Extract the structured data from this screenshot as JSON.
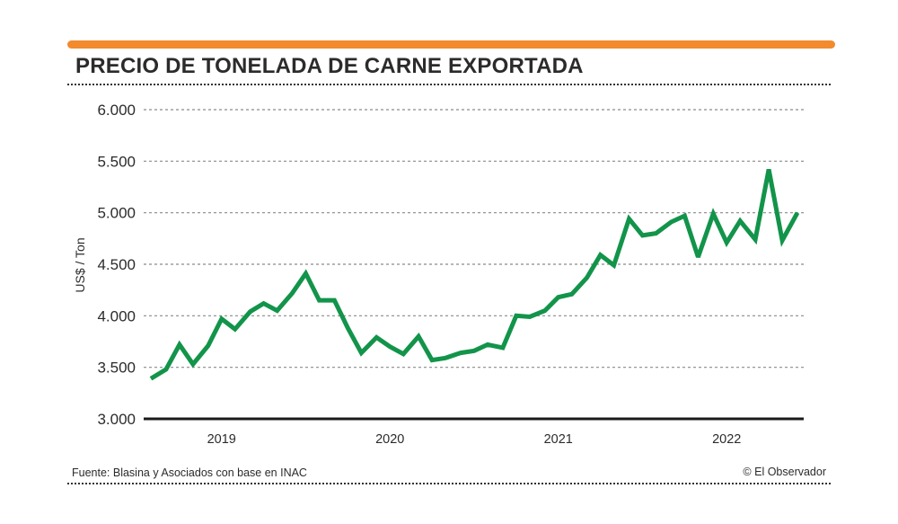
{
  "title": "PRECIO DE TONELADA DE CARNE EXPORTADA",
  "footer": {
    "source": "Fuente: Blasina y Asociados con base en INAC",
    "credit": "© El Observador"
  },
  "colors": {
    "accent_bar": "#f28a2e",
    "line": "#12944a",
    "text": "#2b2b2b",
    "grid": "#8a8a8a"
  },
  "chart_data": {
    "type": "line",
    "title": "PRECIO DE TONELADA DE CARNE EXPORTADA",
    "xlabel": "",
    "ylabel": "US$ / Ton",
    "ylim": [
      3000,
      6000
    ],
    "xlim": [
      2018.58,
      2022.42
    ],
    "yticks": [
      3000,
      3500,
      4000,
      4500,
      5000,
      5500,
      6000
    ],
    "ytick_labels": [
      "3.000",
      "3.500",
      "4.000",
      "4.500",
      "5.000",
      "5.500",
      "6.000"
    ],
    "xticks": [
      {
        "label": "2019",
        "value": 2019.0
      },
      {
        "label": "2020",
        "value": 2020.0
      },
      {
        "label": "2021",
        "value": 2021.0
      },
      {
        "label": "2022",
        "value": 2022.0
      }
    ],
    "grid": true,
    "series": [
      {
        "name": "US$ / Ton",
        "x": [
          2018.58,
          2018.67,
          2018.75,
          2018.83,
          2018.92,
          2019.0,
          2019.08,
          2019.17,
          2019.25,
          2019.33,
          2019.42,
          2019.5,
          2019.58,
          2019.67,
          2019.75,
          2019.83,
          2019.92,
          2020.0,
          2020.08,
          2020.17,
          2020.25,
          2020.33,
          2020.42,
          2020.5,
          2020.58,
          2020.67,
          2020.75,
          2020.83,
          2020.92,
          2021.0,
          2021.08,
          2021.17,
          2021.25,
          2021.33,
          2021.42,
          2021.5,
          2021.58,
          2021.67,
          2021.75,
          2021.83,
          2021.92,
          2022.0,
          2022.08,
          2022.17,
          2022.25,
          2022.33,
          2022.42
        ],
        "values": [
          3390,
          3480,
          3720,
          3530,
          3710,
          3970,
          3870,
          4040,
          4120,
          4050,
          4220,
          4410,
          4150,
          4150,
          3880,
          3640,
          3790,
          3700,
          3630,
          3800,
          3570,
          3590,
          3640,
          3660,
          3720,
          3690,
          4000,
          3990,
          4050,
          4180,
          4210,
          4370,
          4590,
          4490,
          4940,
          4780,
          4800,
          4910,
          4970,
          4570,
          4990,
          4710,
          4920,
          4740,
          5420,
          4730,
          5000
        ]
      }
    ]
  }
}
